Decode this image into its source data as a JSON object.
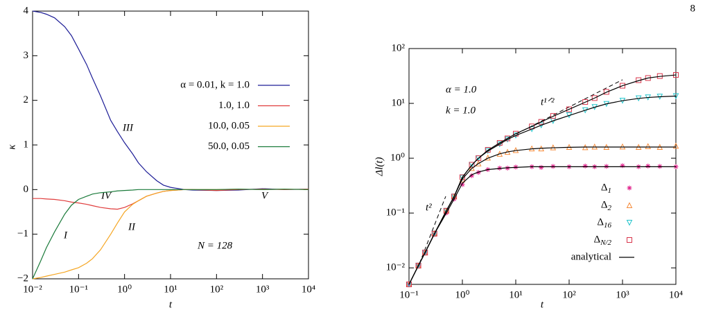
{
  "page_number": "8",
  "chart_data": [
    {
      "type": "line",
      "xlabel": "t",
      "ylabel": "κ",
      "xlog": true,
      "xlim": [
        0.01,
        10000
      ],
      "ylim": [
        -2,
        4
      ],
      "xticks": [
        {
          "value": 0.01,
          "label": "10⁻²"
        },
        {
          "value": 0.1,
          "label": "10⁻¹"
        },
        {
          "value": 1,
          "label": "10⁰"
        },
        {
          "value": 10,
          "label": "10¹"
        },
        {
          "value": 100,
          "label": "10²"
        },
        {
          "value": 1000,
          "label": "10³"
        },
        {
          "value": 10000,
          "label": "10⁴"
        }
      ],
      "yticks": [
        {
          "value": -2,
          "label": "−2"
        },
        {
          "value": -1,
          "label": "−1"
        },
        0,
        1,
        2,
        3,
        4
      ],
      "annotations": [
        "III",
        "IV",
        "I",
        "II",
        "V",
        "N = 128"
      ],
      "x": [
        0.01,
        0.015,
        0.02,
        0.03,
        0.05,
        0.07,
        0.1,
        0.15,
        0.2,
        0.3,
        0.5,
        0.7,
        1,
        1.5,
        2,
        3,
        5,
        7,
        10,
        20,
        30,
        100,
        300,
        1000,
        3000,
        10000
      ],
      "series": [
        {
          "name": "α = 0.01,  k = 1.0",
          "color": "#1c1c96",
          "values": [
            4,
            3.97,
            3.93,
            3.85,
            3.65,
            3.45,
            3.15,
            2.8,
            2.5,
            2.1,
            1.55,
            1.3,
            1.05,
            0.8,
            0.6,
            0.4,
            0.2,
            0.1,
            0.05,
            0,
            -0.01,
            -0.02,
            -0.01,
            0.02,
            0,
            0.01
          ]
        },
        {
          "name": "1.0,        1.0",
          "color": "#e03c3c",
          "values": [
            -0.2,
            -0.2,
            -0.21,
            -0.22,
            -0.25,
            -0.28,
            -0.3,
            -0.33,
            -0.36,
            -0.4,
            -0.43,
            -0.44,
            -0.4,
            -0.32,
            -0.25,
            -0.15,
            -0.08,
            -0.04,
            -0.02,
            0,
            0,
            -0.02,
            0,
            0.01,
            0,
            0.01
          ]
        },
        {
          "name": "10.0,      0.05",
          "color": "#f5a623",
          "values": [
            -2,
            -1.97,
            -1.94,
            -1.9,
            -1.85,
            -1.8,
            -1.75,
            -1.65,
            -1.55,
            -1.35,
            -1,
            -0.75,
            -0.5,
            -0.33,
            -0.25,
            -0.15,
            -0.08,
            -0.04,
            -0.02,
            0,
            0,
            0,
            0.01,
            0,
            0.01,
            0
          ]
        },
        {
          "name": "50.0,      0.05",
          "color": "#1a7a3a",
          "values": [
            -2,
            -1.6,
            -1.3,
            -0.95,
            -0.55,
            -0.35,
            -0.22,
            -0.15,
            -0.1,
            -0.07,
            -0.05,
            -0.03,
            -0.02,
            -0.01,
            0,
            0,
            0,
            0,
            0,
            0,
            0,
            0,
            0.01,
            0,
            0.01,
            0
          ]
        }
      ]
    },
    {
      "type": "line",
      "xlabel": "t",
      "ylabel": "Δl(t)",
      "xlog": true,
      "ylog": true,
      "xlim": [
        0.1,
        10000
      ],
      "ylim": [
        0.005,
        100
      ],
      "xticks": [
        {
          "value": 0.1,
          "label": "10⁻¹"
        },
        {
          "value": 1,
          "label": "10⁰"
        },
        {
          "value": 10,
          "label": "10¹"
        },
        {
          "value": 100,
          "label": "10²"
        },
        {
          "value": 1000,
          "label": "10³"
        },
        {
          "value": 10000,
          "label": "10⁴"
        }
      ],
      "yticks": [
        {
          "value": 0.01,
          "label": "10⁻²"
        },
        {
          "value": 0.1,
          "label": "10⁻¹"
        },
        {
          "value": 1,
          "label": "10⁰"
        },
        {
          "value": 10,
          "label": "10¹"
        },
        {
          "value": 100,
          "label": "10²"
        }
      ],
      "annotations": [
        "α = 1.0",
        "k = 1.0",
        "t¹ᐟ²",
        "t²"
      ],
      "x": [
        0.1,
        0.15,
        0.2,
        0.3,
        0.5,
        0.7,
        1,
        1.5,
        2,
        3,
        5,
        7,
        10,
        20,
        30,
        50,
        100,
        200,
        300,
        500,
        1000,
        2000,
        3000,
        5000,
        10000
      ],
      "series": [
        {
          "name": "Δ1",
          "color": "#e0208a",
          "marker": "asterisk",
          "values": [
            0.005,
            0.011,
            0.019,
            0.041,
            0.1,
            0.18,
            0.33,
            0.48,
            0.55,
            0.62,
            0.66,
            0.66,
            0.69,
            0.7,
            0.68,
            0.71,
            0.7,
            0.72,
            0.7,
            0.71,
            0.73,
            0.7,
            0.72,
            0.71,
            0.7
          ]
        },
        {
          "name": "Δ2",
          "color": "#f58b3a",
          "marker": "triangle",
          "values": [
            0.005,
            0.011,
            0.019,
            0.043,
            0.11,
            0.2,
            0.41,
            0.66,
            0.8,
            1.02,
            1.2,
            1.3,
            1.4,
            1.5,
            1.5,
            1.57,
            1.6,
            1.58,
            1.62,
            1.6,
            1.63,
            1.6,
            1.65,
            1.6,
            1.68
          ]
        },
        {
          "name": "Δ16",
          "color": "#22c4cc",
          "marker": "triangle-down",
          "values": [
            0.005,
            0.011,
            0.019,
            0.042,
            0.11,
            0.2,
            0.44,
            0.76,
            1,
            1.36,
            1.8,
            2.2,
            2.6,
            3.4,
            4,
            4.8,
            6.1,
            7.5,
            8.6,
            9.8,
            11.2,
            12.4,
            12.9,
            13.3,
            13.6
          ]
        },
        {
          "name": "ΔN/2",
          "color": "#d8344a",
          "marker": "square",
          "values": [
            0.005,
            0.011,
            0.019,
            0.042,
            0.11,
            0.2,
            0.45,
            0.76,
            1,
            1.42,
            1.9,
            2.3,
            2.8,
            3.8,
            4.6,
            5.9,
            7.8,
            10.6,
            12.5,
            16.2,
            21,
            26.5,
            29,
            31.5,
            33
          ]
        },
        {
          "name": "analytical",
          "color": "#000000",
          "values": [
            0.005,
            0.011,
            0.019,
            0.042,
            0.1,
            0.18,
            0.35,
            0.5,
            0.56,
            0.62,
            0.65,
            0.67,
            0.68,
            0.7,
            0.7,
            0.7,
            0.7,
            0.7,
            0.7,
            0.7,
            0.7,
            0.7,
            0.7,
            0.7,
            0.7
          ]
        },
        {
          "color": "#000000",
          "values": [
            0.005,
            0.011,
            0.019,
            0.042,
            0.11,
            0.2,
            0.42,
            0.65,
            0.8,
            1,
            1.2,
            1.3,
            1.38,
            1.48,
            1.52,
            1.55,
            1.58,
            1.6,
            1.6,
            1.6,
            1.6,
            1.6,
            1.6,
            1.6,
            1.6
          ]
        },
        {
          "color": "#000000",
          "values": [
            0.005,
            0.011,
            0.019,
            0.042,
            0.11,
            0.2,
            0.45,
            0.75,
            1,
            1.35,
            1.8,
            2.2,
            2.6,
            3.4,
            4,
            4.8,
            6,
            7.5,
            8.5,
            9.8,
            11.2,
            12.3,
            12.8,
            13.2,
            13.6
          ]
        },
        {
          "color": "#000000",
          "values": [
            0.005,
            0.011,
            0.019,
            0.042,
            0.11,
            0.2,
            0.45,
            0.75,
            1,
            1.4,
            1.9,
            2.3,
            2.8,
            3.8,
            4.6,
            5.8,
            7.8,
            10.5,
            12.5,
            16,
            21,
            26,
            29,
            31,
            33
          ]
        }
      ]
    }
  ]
}
